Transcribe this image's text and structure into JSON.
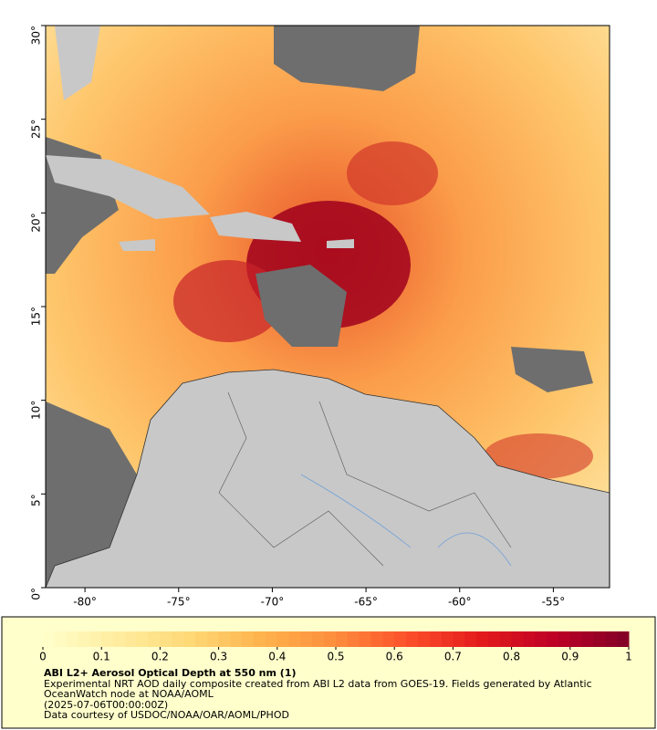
{
  "map": {
    "xlim": [
      -82.1,
      -52
    ],
    "ylim": [
      0,
      30
    ],
    "xticks": [
      {
        "value": -80,
        "label": "-80°"
      },
      {
        "value": -75,
        "label": "-75°"
      },
      {
        "value": -70,
        "label": "-70°"
      },
      {
        "value": -65,
        "label": "-65°"
      },
      {
        "value": -60,
        "label": "-60°"
      },
      {
        "value": -55,
        "label": "-55°"
      }
    ],
    "yticks": [
      {
        "value": 0,
        "label": "0°"
      },
      {
        "value": 5,
        "label": "5°"
      },
      {
        "value": 10,
        "label": "10°"
      },
      {
        "value": 15,
        "label": "15°"
      },
      {
        "value": 20,
        "label": "20°"
      },
      {
        "value": 25,
        "label": "25°"
      },
      {
        "value": 30,
        "label": "30°"
      }
    ]
  },
  "colorbar": {
    "lim": [
      0,
      1
    ],
    "ticks": [
      0,
      0.1,
      0.2,
      0.3,
      0.4,
      0.5,
      0.6,
      0.7,
      0.8,
      0.9,
      1
    ],
    "colors": [
      "#ffffcc",
      "#ffeda0",
      "#fed976",
      "#feb24c",
      "#fd8d3c",
      "#fc4e2a",
      "#e31a1c",
      "#bd0026",
      "#800026"
    ]
  },
  "footer": {
    "title": "ABI L2+ Aerosol Optical Depth at 550 nm (1)",
    "description": "Experimental NRT AOD daily composite created from ABI L2 data from GOES-19. Fields generated by Atlantic OceanWatch node at NOAA/AOML",
    "timestamp": "(2025-07-06T00:00:00Z)",
    "credit": "Data courtesy of USDOC/NOAA/OAR/AOML/PHOD"
  }
}
